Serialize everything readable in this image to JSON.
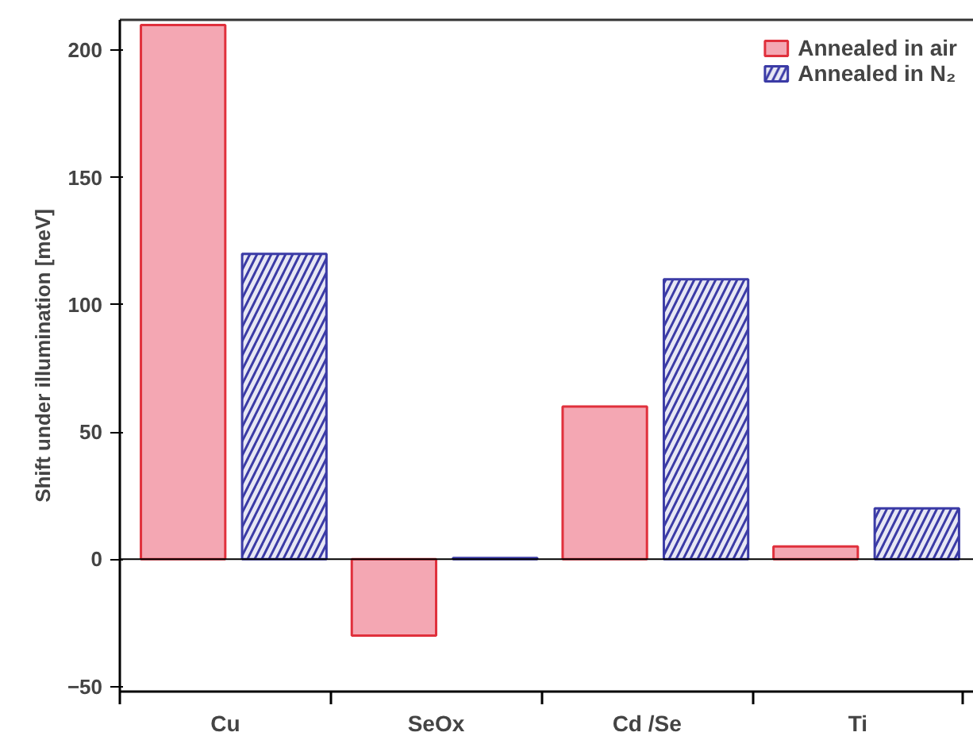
{
  "chart_data": {
    "type": "bar",
    "ylabel": "Shift under illumination [meV]",
    "categories": [
      "Cu",
      "SeOx",
      "Cd /Se",
      "Ti"
    ],
    "series": [
      {
        "name": "Annealed in air",
        "color": "#f4a7b3",
        "values": [
          210,
          -30,
          60,
          5
        ]
      },
      {
        "name": "Annealed in N₂",
        "color": "#3b3ba6",
        "values": [
          120,
          0.5,
          110,
          20
        ]
      }
    ],
    "ylim": [
      -52,
      212
    ],
    "yticks": [
      -50,
      0,
      50,
      100,
      150,
      200
    ],
    "ref_lines": [
      {
        "axis": "y",
        "value": 0,
        "color": "#000000"
      }
    ],
    "grid": false,
    "legend": "top right"
  }
}
